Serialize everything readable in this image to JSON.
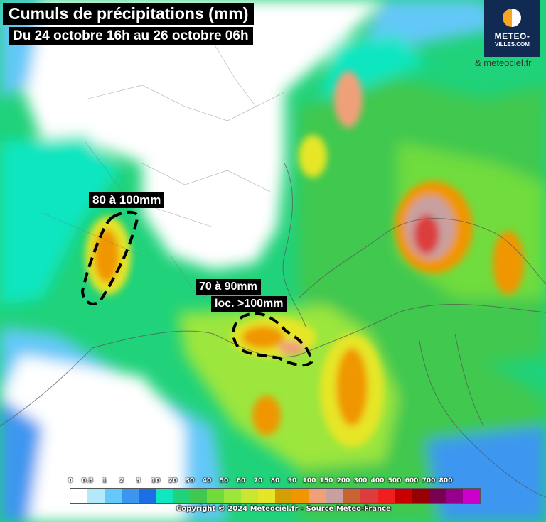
{
  "title": "Cumuls de précipitations (mm)",
  "subtitle": "Du 24 octobre 16h au 26 octobre 06h",
  "logo": {
    "line1": "METEO-",
    "line2": "VILLES.COM"
  },
  "credit": "& meteociel.fr",
  "zones": [
    {
      "label": "80 à 100mm"
    },
    {
      "label": "70 à 90mm",
      "sublabel": "loc. >100mm"
    }
  ],
  "legend": {
    "ticks": [
      "0",
      "0.5",
      "1",
      "2",
      "5",
      "10",
      "20",
      "30",
      "40",
      "50",
      "60",
      "70",
      "80",
      "90",
      "100",
      "150",
      "200",
      "300",
      "400",
      "500",
      "600",
      "700",
      "800"
    ],
    "colors": [
      "#ffffff",
      "#b4e9fb",
      "#64c8f8",
      "#3c96f0",
      "#1c6ee6",
      "#10e6c0",
      "#20d27a",
      "#40c850",
      "#70dc3c",
      "#9ce63c",
      "#c8e632",
      "#e6e628",
      "#d2a000",
      "#f09600",
      "#f0a078",
      "#c8a0a0",
      "#c86432",
      "#dc3c3c",
      "#f01e1e",
      "#c80000",
      "#960000",
      "#780050",
      "#96008c",
      "#cc00cc"
    ]
  },
  "copyright": "Copyright © 2024 Meteociel.fr - Source Meteo-France"
}
